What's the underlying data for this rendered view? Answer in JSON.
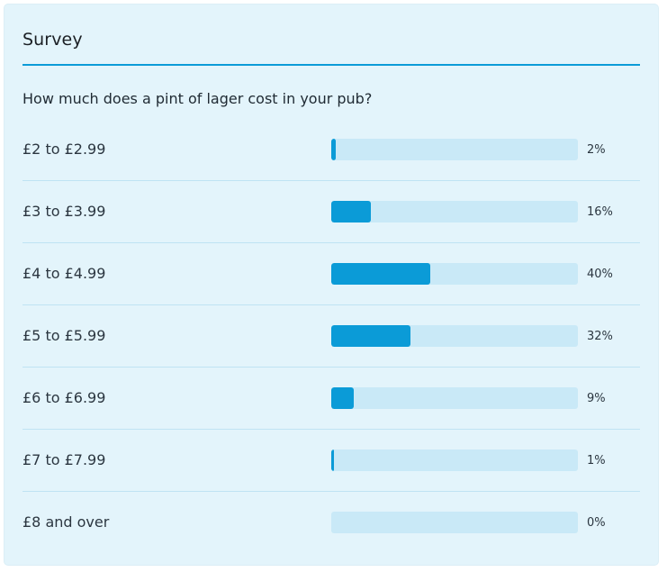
{
  "widget": {
    "title": "Survey",
    "question": "How much does a pint of lager cost in your pub?"
  },
  "colors": {
    "accent": "#0b9bd7",
    "track": "#c9e9f7",
    "card_background": "#e3f4fb"
  },
  "chart_data": {
    "type": "bar",
    "orientation": "horizontal",
    "title": "Survey",
    "subtitle": "How much does a pint of lager cost in your pub?",
    "categories": [
      "£2 to £2.99",
      "£3 to £3.99",
      "£4 to £4.99",
      "£5 to £5.99",
      "£6 to £6.99",
      "£7 to £7.99",
      "£8 and over"
    ],
    "values": [
      2,
      16,
      40,
      32,
      9,
      1,
      0
    ],
    "value_labels": [
      "2%",
      "16%",
      "40%",
      "32%",
      "9%",
      "1%",
      "0%"
    ],
    "xlim": [
      0,
      100
    ],
    "grid": false,
    "legend": "none"
  }
}
